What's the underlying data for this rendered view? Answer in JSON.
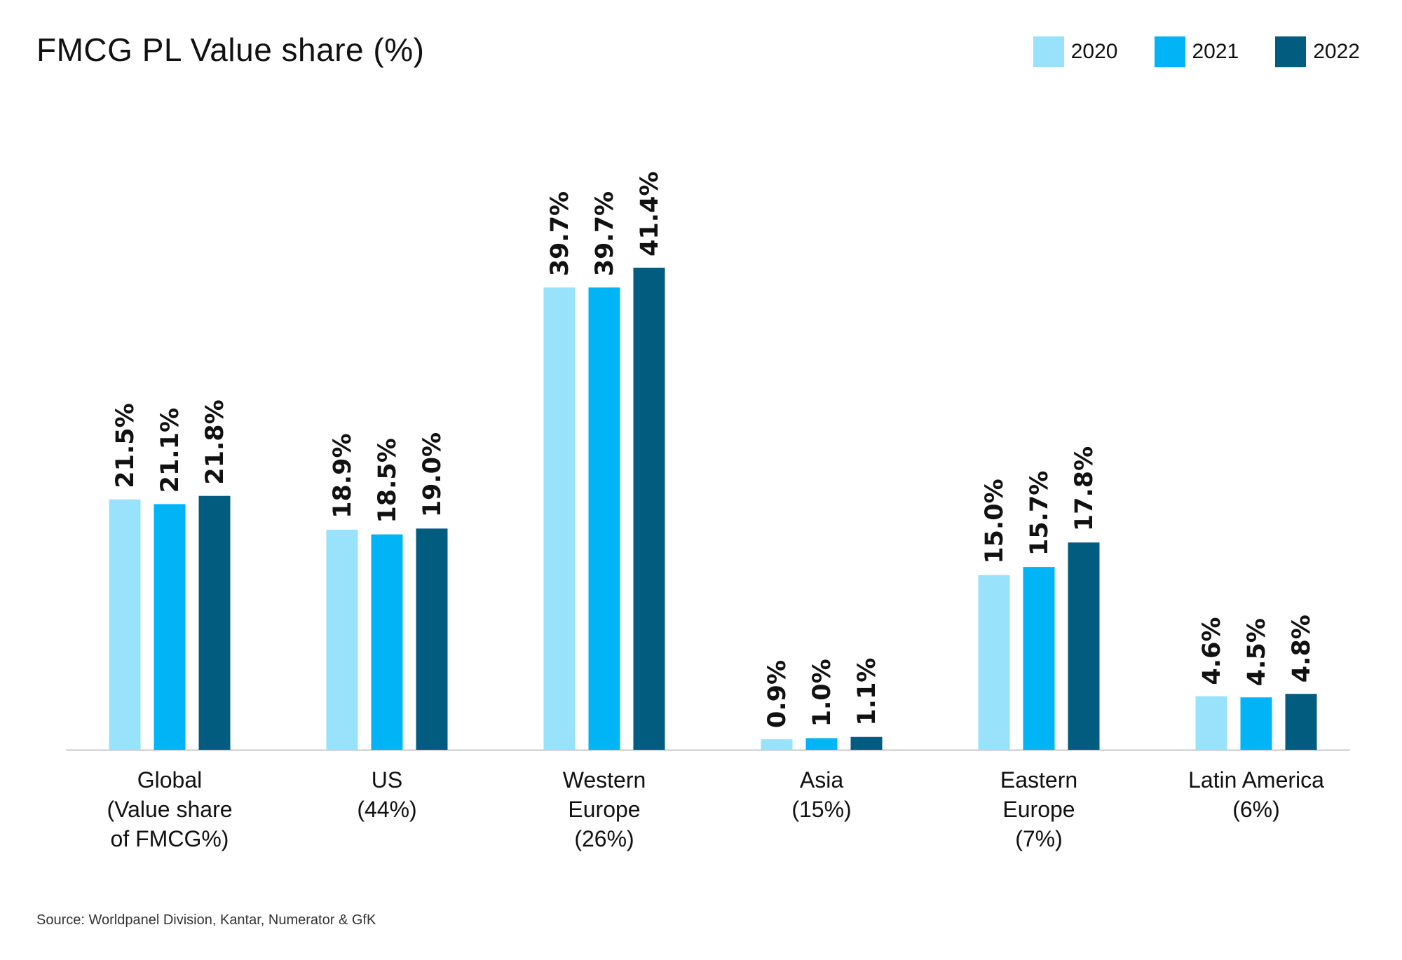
{
  "title": "FMCG PL Value share (%)",
  "source": "Source: Worldpanel Division, Kantar, Numerator & GfK",
  "legend": [
    {
      "label": "2020",
      "color": "#99e2fb"
    },
    {
      "label": "2021",
      "color": "#00b4f5"
    },
    {
      "label": "2022",
      "color": "#015c80"
    }
  ],
  "chart_data": {
    "type": "bar",
    "categories": [
      [
        "Global",
        "(Value share",
        "of FMCG%)"
      ],
      [
        "US",
        "(44%)"
      ],
      [
        "Western",
        "Europe",
        "(26%)"
      ],
      [
        "Asia",
        "(15%)"
      ],
      [
        "Eastern",
        "Europe",
        "(7%)"
      ],
      [
        "Latin America",
        "(6%)"
      ]
    ],
    "series": [
      {
        "name": "2020",
        "color": "#99e2fb",
        "values": [
          21.5,
          18.9,
          39.7,
          0.9,
          15.0,
          4.6
        ],
        "labels": [
          "21.5%",
          "18.9%",
          "39.7%",
          "0.9%",
          "15.0%",
          "4.6%"
        ]
      },
      {
        "name": "2021",
        "color": "#00b4f5",
        "values": [
          21.1,
          18.5,
          39.7,
          1.0,
          15.7,
          4.5
        ],
        "labels": [
          "21.1%",
          "18.5%",
          "39.7%",
          "1.0%",
          "15.7%",
          "4.5%"
        ]
      },
      {
        "name": "2022",
        "color": "#015c80",
        "values": [
          21.8,
          19.0,
          41.4,
          1.1,
          17.8,
          4.8
        ],
        "labels": [
          "21.8%",
          "19.0%",
          "41.4%",
          "1.1%",
          "17.8%",
          "4.8%"
        ]
      }
    ],
    "ylim": [
      0,
      41.4
    ],
    "grid": false,
    "legend_position": "top-right"
  }
}
